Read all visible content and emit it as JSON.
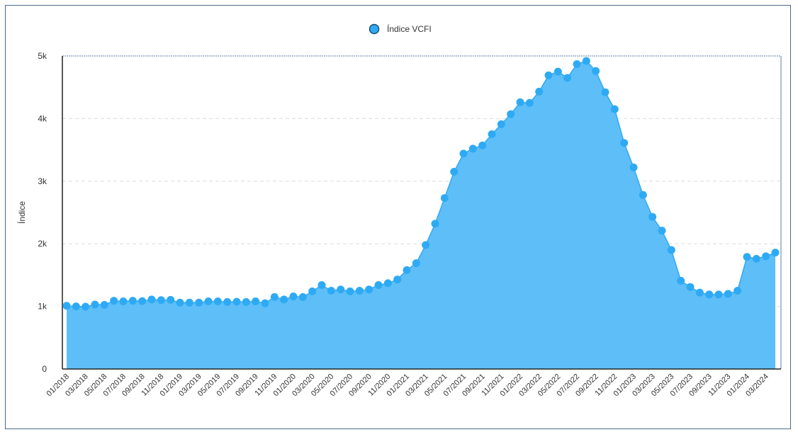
{
  "chart_data": {
    "type": "area",
    "legend": "Índice VCFI",
    "ylabel": "Índice",
    "ylim": [
      0,
      5000
    ],
    "y_ticks": [
      {
        "value": 0,
        "label": "0"
      },
      {
        "value": 1000,
        "label": "1k"
      },
      {
        "value": 2000,
        "label": "2k"
      },
      {
        "value": 3000,
        "label": "3k"
      },
      {
        "value": 4000,
        "label": "4k"
      },
      {
        "value": 5000,
        "label": "5k"
      }
    ],
    "x_tick_labels": [
      "01/2018",
      "03/2018",
      "05/2018",
      "07/2018",
      "09/2018",
      "11/2018",
      "01/2019",
      "03/2019",
      "05/2019",
      "07/2019",
      "09/2019",
      "11/2019",
      "01/2020",
      "03/2020",
      "05/2020",
      "07/2020",
      "09/2020",
      "11/2020",
      "01/2021",
      "03/2021",
      "05/2021",
      "07/2021",
      "09/2021",
      "11/2021",
      "01/2022",
      "03/2022",
      "05/2022",
      "07/2022",
      "09/2022",
      "11/2022",
      "01/2023",
      "03/2023",
      "05/2023",
      "07/2023",
      "09/2023",
      "11/2023",
      "01/2024",
      "03/2024"
    ],
    "series": [
      {
        "name": "Índice VCFI",
        "color": "#5ebef8",
        "marker_color": "#2eaaf4",
        "values": [
          1010,
          1000,
          995,
          1030,
          1025,
          1090,
          1080,
          1090,
          1085,
          1110,
          1100,
          1105,
          1060,
          1060,
          1060,
          1080,
          1080,
          1070,
          1075,
          1070,
          1080,
          1050,
          1150,
          1110,
          1160,
          1150,
          1240,
          1340,
          1250,
          1270,
          1240,
          1250,
          1270,
          1340,
          1370,
          1430,
          1580,
          1690,
          1980,
          2320,
          2730,
          3150,
          3440,
          3520,
          3570,
          3750,
          3910,
          4070,
          4260,
          4250,
          4430,
          4690,
          4750,
          4650,
          4870,
          4920,
          4760,
          4420,
          4150,
          3610,
          3220,
          2780,
          2430,
          2210,
          1900,
          1410,
          1310,
          1220,
          1190,
          1190,
          1200,
          1250,
          1790,
          1760,
          1800,
          1860
        ]
      }
    ]
  }
}
